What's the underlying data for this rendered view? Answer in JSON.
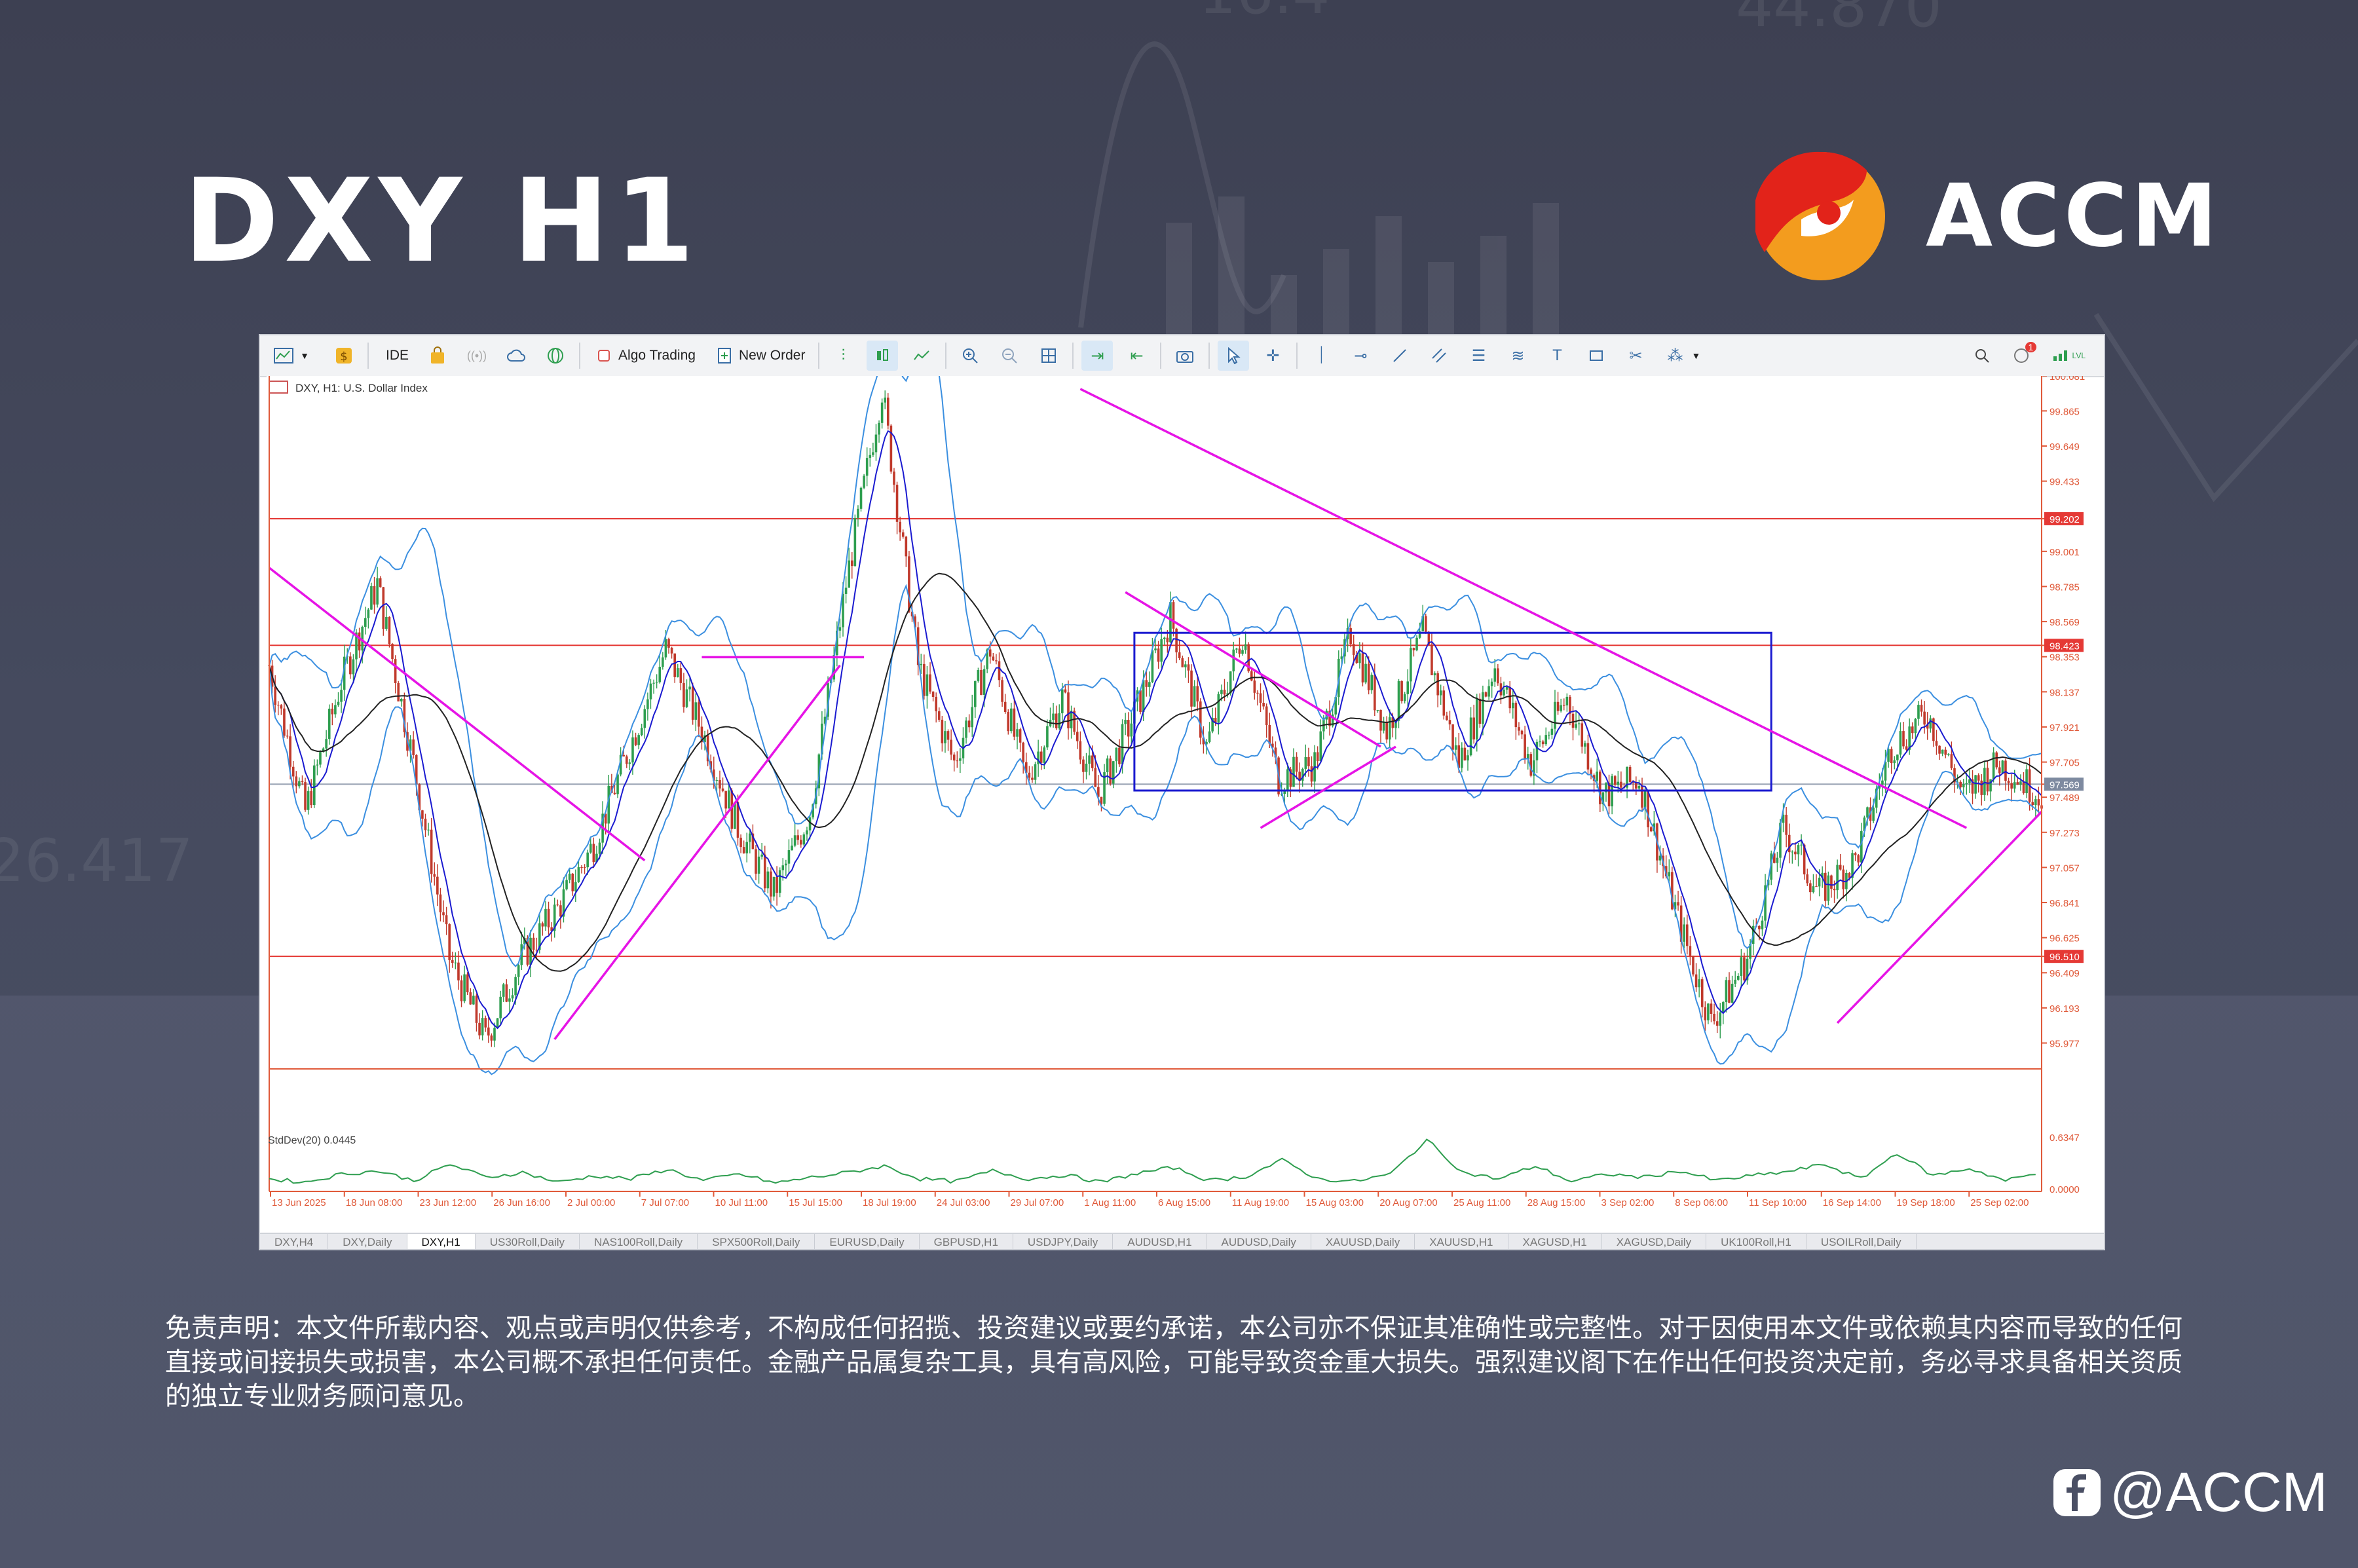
{
  "headline": "DXY H1",
  "brand": {
    "name": "ACCM",
    "colors": {
      "red": "#e2231a",
      "orange": "#f5a623"
    }
  },
  "toolbar": {
    "ide_label": "IDE",
    "algo_label": "Algo Trading",
    "order_label": "New Order",
    "notification_count": "1",
    "lvl_label": "LVL"
  },
  "chart_data": {
    "type": "line",
    "symbol_label": "DXY, H1:  U.S. Dollar Index",
    "y_ticks": [
      "100.081",
      "99.865",
      "99.649",
      "99.433",
      "99.202",
      "99.001",
      "98.785",
      "98.569",
      "98.423",
      "98.353",
      "98.137",
      "97.921",
      "97.705",
      "97.569",
      "97.489",
      "97.273",
      "97.057",
      "96.841",
      "96.625",
      "96.510",
      "96.409",
      "96.193",
      "95.977"
    ],
    "y_tick_values": [
      100.081,
      99.865,
      99.649,
      99.433,
      99.202,
      99.001,
      98.785,
      98.569,
      98.423,
      98.353,
      98.137,
      97.921,
      97.705,
      97.569,
      97.489,
      97.273,
      97.057,
      96.841,
      96.625,
      96.51,
      96.409,
      96.193,
      95.977
    ],
    "ylim": [
      95.85,
      100.08
    ],
    "x_ticks": [
      "13 Jun 2025",
      "18 Jun 08:00",
      "23 Jun 12:00",
      "26 Jun 16:00",
      "2 Jul 00:00",
      "7 Jul 07:00",
      "10 Jul 11:00",
      "15 Jul 15:00",
      "18 Jul 19:00",
      "24 Jul 03:00",
      "29 Jul 07:00",
      "1 Aug 11:00",
      "6 Aug 15:00",
      "11 Aug 19:00",
      "15 Aug 03:00",
      "20 Aug 07:00",
      "25 Aug 11:00",
      "28 Aug 15:00",
      "3 Sep 02:00",
      "8 Sep 06:00",
      "11 Sep 10:00",
      "16 Sep 14:00",
      "19 Sep 18:00",
      "25 Sep 02:00"
    ],
    "horizontal_levels": [
      {
        "value": 99.202,
        "label": "99.202",
        "color": "#e53935"
      },
      {
        "value": 98.423,
        "label": "98.423",
        "color": "#e53935"
      },
      {
        "value": 96.51,
        "label": "96.510",
        "color": "#e53935"
      }
    ],
    "current_price": {
      "value": 97.569,
      "label": "97.569",
      "color": "#7e8aa0"
    },
    "price_series": {
      "name": "",
      "x": [
        0,
        12,
        24,
        36,
        48,
        60,
        72,
        84,
        96,
        108,
        120,
        132,
        144,
        156,
        168,
        180,
        192,
        204,
        216,
        228,
        240,
        252,
        264,
        276,
        288,
        300,
        312,
        324,
        336,
        348,
        360,
        372,
        384,
        396,
        408,
        420,
        432,
        444,
        456,
        468,
        480,
        492,
        504,
        516,
        528,
        540,
        552,
        564,
        576,
        590
      ],
      "y": [
        98.3,
        97.4,
        98.2,
        98.8,
        97.7,
        96.5,
        96.0,
        96.5,
        96.8,
        97.2,
        97.8,
        98.4,
        97.9,
        97.3,
        96.9,
        97.4,
        98.8,
        100.0,
        98.3,
        97.7,
        98.4,
        97.6,
        98.1,
        97.5,
        98.0,
        98.6,
        97.8,
        98.5,
        97.6,
        97.7,
        98.5,
        97.9,
        98.5,
        97.7,
        98.3,
        97.7,
        98.1,
        97.5,
        97.6,
        96.8,
        96.1,
        96.5,
        97.3,
        96.9,
        97.1,
        97.8,
        98.0,
        97.5,
        97.7,
        97.5
      ]
    },
    "trendlines": [
      {
        "from": [
          0,
          98.9
        ],
        "to": [
          125,
          97.1
        ],
        "color": "#e614e6"
      },
      {
        "from": [
          95,
          96.0
        ],
        "to": [
          190,
          98.3
        ],
        "color": "#e614e6"
      },
      {
        "from": [
          144,
          98.35
        ],
        "to": [
          198,
          98.35
        ],
        "color": "#e614e6"
      },
      {
        "from": [
          270,
          100.0
        ],
        "to": [
          565,
          97.3
        ],
        "color": "#e614e6"
      },
      {
        "from": [
          285,
          98.75
        ],
        "to": [
          370,
          97.8
        ],
        "color": "#e614e6"
      },
      {
        "from": [
          330,
          97.3
        ],
        "to": [
          375,
          97.8
        ],
        "color": "#e614e6"
      },
      {
        "from": [
          522,
          96.1
        ],
        "to": [
          590,
          97.4
        ],
        "color": "#e614e6"
      }
    ],
    "range_box": {
      "x_from": 288,
      "x_to": 500,
      "y_top": 98.5,
      "y_bottom": 97.53,
      "color": "#1a1ad0"
    },
    "stddev": {
      "label": "StdDev(20) 0.0445",
      "y_ticks": [
        "0.6347",
        "0.0000"
      ],
      "values": [
        0.12,
        0.08,
        0.18,
        0.22,
        0.1,
        0.3,
        0.14,
        0.2,
        0.08,
        0.16,
        0.12,
        0.24,
        0.1,
        0.18,
        0.07,
        0.14,
        0.2,
        0.28,
        0.12,
        0.09,
        0.22,
        0.12,
        0.17,
        0.08,
        0.19,
        0.26,
        0.1,
        0.15,
        0.35,
        0.12,
        0.09,
        0.18,
        0.6,
        0.2,
        0.12,
        0.28,
        0.09,
        0.18,
        0.14,
        0.22,
        0.1,
        0.16,
        0.21,
        0.3,
        0.12,
        0.44,
        0.16,
        0.25,
        0.1,
        0.2
      ],
      "color": "#2e9e4f"
    },
    "colors": {
      "bull": "#2e9e4f",
      "bear": "#c0392b",
      "band": "#3b8fe0",
      "ma_fast": "#1a1ad0",
      "ma_slow": "#222222"
    }
  },
  "tabs": [
    "DXY,H4",
    "DXY,Daily",
    "DXY,H1",
    "US30Roll,Daily",
    "NAS100Roll,Daily",
    "SPX500Roll,Daily",
    "EURUSD,Daily",
    "GBPUSD,H1",
    "USDJPY,Daily",
    "AUDUSD,H1",
    "AUDUSD,Daily",
    "XAUUSD,Daily",
    "XAUUSD,H1",
    "XAGUSD,H1",
    "XAGUSD,Daily",
    "UK100Roll,H1",
    "USOILRoll,Daily"
  ],
  "tab_active_index": 2,
  "disclaimer": "免责声明：本文件所载内容、观点或声明仅供参考，不构成任何招揽、投资建议或要约承诺，本公司亦不保证其准确性或完整性。对于因使用本文件或依赖其内容而导致的任何直接或间接损失或损害，本公司概不承担任何责任。金融产品属复杂工具，具有高风险，可能导致资金重大损失。强烈建议阁下在作出任何投资决定前，务必寻求具备相关资质的独立专业财务顾问意见。",
  "social_handle": "@ACCM"
}
